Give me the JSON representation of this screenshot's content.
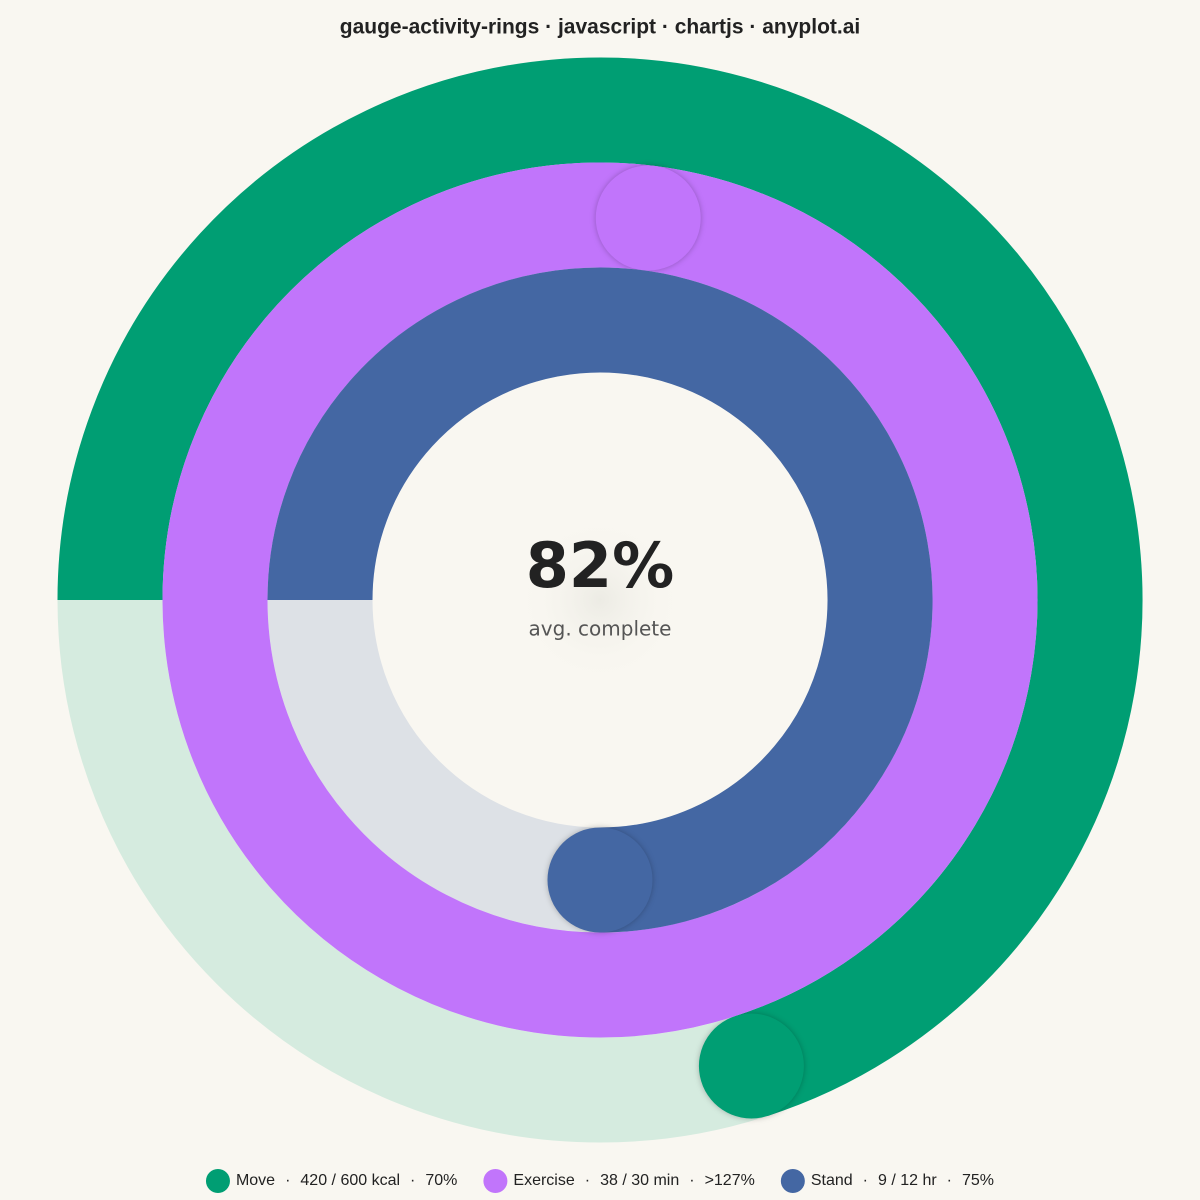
{
  "chart_data": {
    "type": "activity-rings",
    "title": "gauge-activity-rings · javascript · chartjs · anyplot.ai",
    "center_label": "82%",
    "center_caption": "avg. complete",
    "separator": "·",
    "series": [
      {
        "name": "Move",
        "color": "#009e73",
        "track_color": "#d5ebdf",
        "detail": "420 / 600 kcal",
        "values": [
          70
        ],
        "value_labels": [
          "70%"
        ]
      },
      {
        "name": "Exercise",
        "color": "#c175fb",
        "track_color": "#eadcf7",
        "detail": "38 / 30 min",
        "values": [
          127
        ],
        "value_labels": [
          ">127%"
        ]
      },
      {
        "name": "Stand",
        "color": "#4467a3",
        "track_color": "#dde1e6",
        "detail": "9 / 12 hr",
        "values": [
          75
        ],
        "value_labels": [
          "75%"
        ]
      }
    ]
  }
}
